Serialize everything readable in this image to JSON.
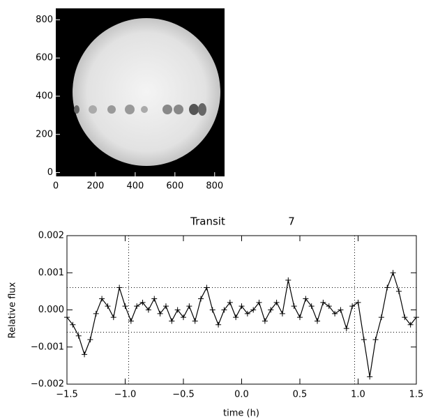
{
  "chart_data": [
    {
      "type": "image",
      "xlim": [
        0,
        850
      ],
      "ylim": [
        -20,
        860
      ],
      "xticks": [
        0,
        200,
        400,
        600,
        800
      ],
      "yticks": [
        0,
        200,
        400,
        600,
        800
      ]
    },
    {
      "type": "line",
      "title": "Transit",
      "annotation": "7",
      "xlabel": "time (h)",
      "ylabel": "Relative flux",
      "xlim": [
        -1.5,
        1.5
      ],
      "ylim": [
        -0.002,
        0.002
      ],
      "xticks": [
        {
          "value": -1.5,
          "label": "−1.5"
        },
        {
          "value": -1.0,
          "label": "−1.0"
        },
        {
          "value": -0.5,
          "label": "−0.5"
        },
        {
          "value": 0,
          "label": "0.0"
        },
        0.5,
        {
          "value": 1.0,
          "label": "1.0"
        },
        1.5
      ],
      "yticks": [
        {
          "value": -0.002,
          "label": "−0.002"
        },
        {
          "value": -0.001,
          "label": "−0.001"
        },
        {
          "value": 0,
          "label": "0.000"
        },
        0.001,
        0.002
      ],
      "hlines": [
        -0.0006,
        0.0006
      ],
      "vlines": [
        -0.97,
        0.97
      ],
      "color": "#000000",
      "x": [
        -1.5,
        -1.45,
        -1.4,
        -1.35,
        -1.3,
        -1.25,
        -1.2,
        -1.15,
        -1.1,
        -1.05,
        -1.0,
        -0.95,
        -0.9,
        -0.85,
        -0.8,
        -0.75,
        -0.7,
        -0.65,
        -0.6,
        -0.55,
        -0.5,
        -0.45,
        -0.4,
        -0.35,
        -0.3,
        -0.25,
        -0.2,
        -0.15,
        -0.1,
        -0.05,
        0.0,
        0.05,
        0.1,
        0.15,
        0.2,
        0.25,
        0.3,
        0.35,
        0.4,
        0.45,
        0.5,
        0.55,
        0.6,
        0.65,
        0.7,
        0.75,
        0.8,
        0.85,
        0.9,
        0.95,
        1.0,
        1.05,
        1.1,
        1.15,
        1.2,
        1.25,
        1.3,
        1.35,
        1.4,
        1.45,
        1.5
      ],
      "values": [
        -0.0002,
        -0.0004,
        -0.0007,
        -0.0012,
        -0.0008,
        -0.0001,
        0.0003,
        0.0001,
        -0.0002,
        0.0006,
        0.0001,
        -0.0003,
        0.0001,
        0.0002,
        0.0,
        0.0003,
        -0.0001,
        0.0001,
        -0.0003,
        0.0,
        -0.0002,
        0.0001,
        -0.0003,
        0.0003,
        0.0006,
        0.0,
        -0.0004,
        0.0,
        0.0002,
        -0.0002,
        0.0001,
        -0.0001,
        0.0,
        0.0002,
        -0.0003,
        0.0,
        0.0002,
        -0.0001,
        0.0008,
        0.0001,
        -0.0002,
        0.0003,
        0.0001,
        -0.0003,
        0.0002,
        0.0001,
        -0.0001,
        0.0,
        -0.0005,
        0.0001,
        0.0002,
        -0.0008,
        -0.0018,
        -0.0008,
        -0.0002,
        0.0006,
        0.001,
        0.0005,
        -0.0002,
        -0.0004,
        -0.0002
      ]
    }
  ]
}
